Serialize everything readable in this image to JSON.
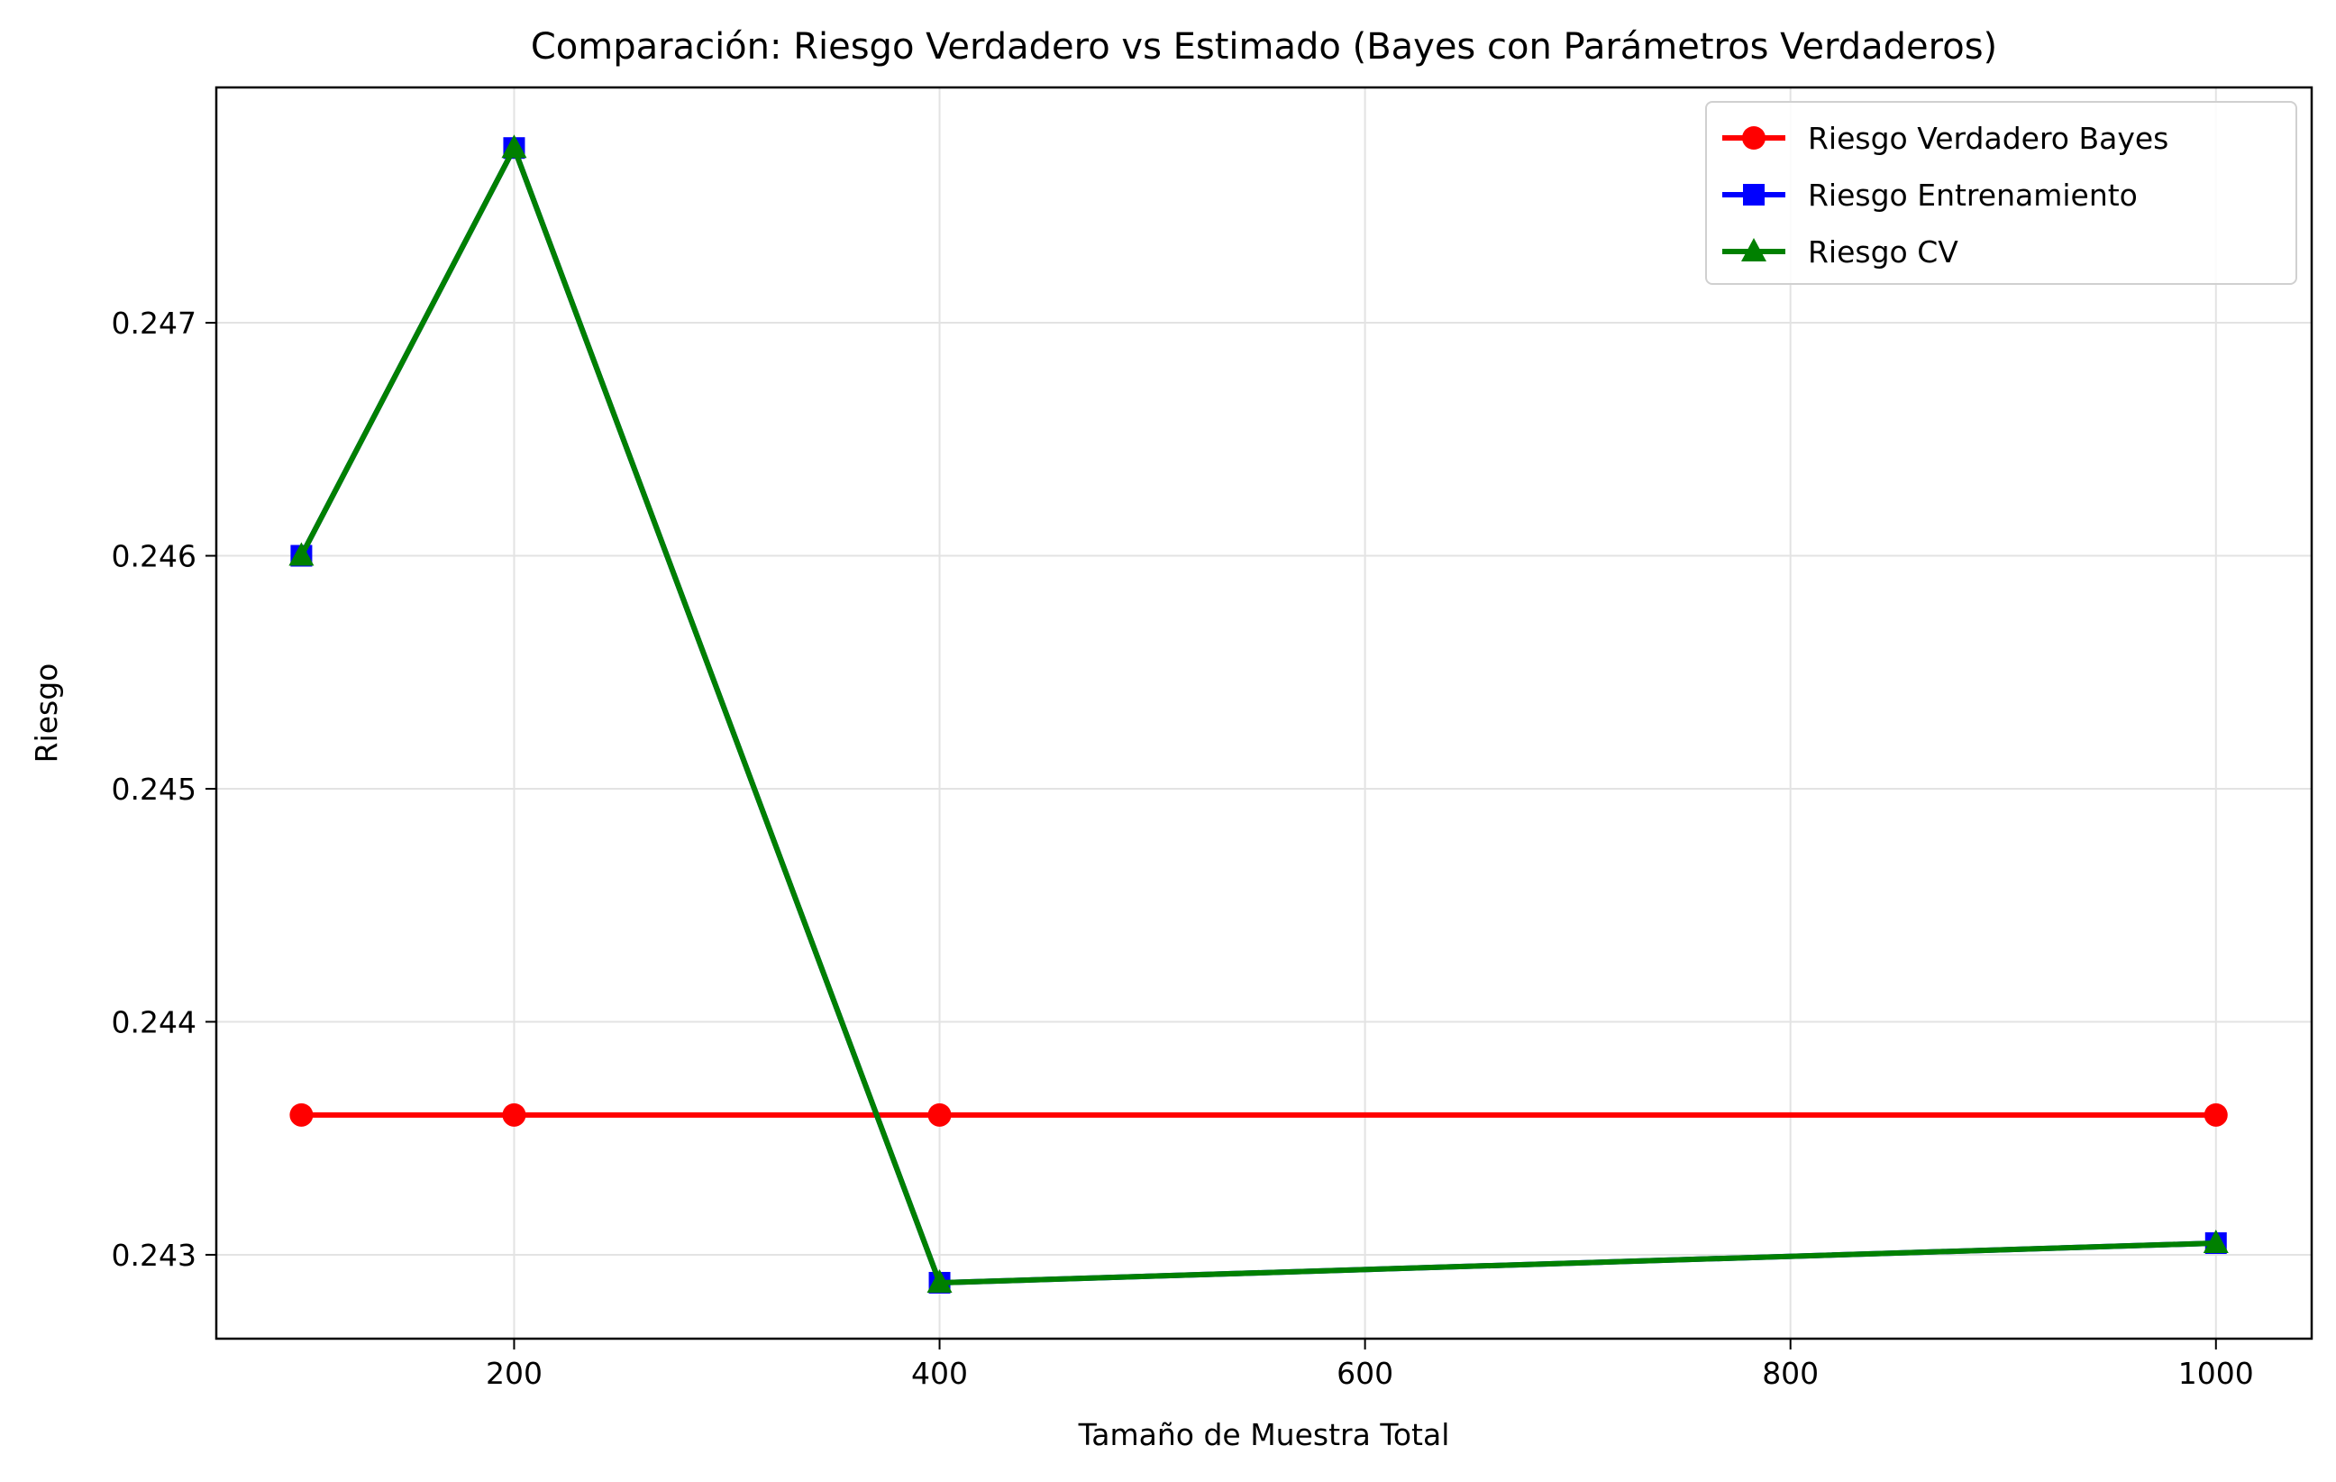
{
  "chart_data": {
    "type": "line",
    "title": "Comparación: Riesgo Verdadero vs Estimado (Bayes con Parámetros Verdaderos)",
    "xlabel": "Tamaño de Muestra Total",
    "ylabel": "Riesgo",
    "x": [
      100,
      200,
      400,
      1000
    ],
    "xlim": [
      60,
      1045
    ],
    "ylim": [
      0.24264,
      0.24801
    ],
    "xticks": [
      200,
      400,
      600,
      800,
      1000
    ],
    "xtick_labels": [
      "200",
      "400",
      "600",
      "800",
      "1000"
    ],
    "yticks": [
      0.243,
      0.244,
      0.245,
      0.246,
      0.247
    ],
    "ytick_labels": [
      "0.243",
      "0.244",
      "0.245",
      "0.246",
      "0.247"
    ],
    "grid": true,
    "legend_position": "top-right",
    "series": [
      {
        "name": "Riesgo Verdadero Bayes",
        "values": [
          0.2436,
          0.2436,
          0.2436,
          0.2436
        ],
        "color": "#ff0000",
        "marker": "circle"
      },
      {
        "name": "Riesgo Entrenamiento",
        "values": [
          0.246,
          0.24775,
          0.24288,
          0.24305
        ],
        "color": "#0000ff",
        "marker": "square"
      },
      {
        "name": "Riesgo CV",
        "values": [
          0.246,
          0.24775,
          0.24288,
          0.24305
        ],
        "color": "#008000",
        "marker": "triangle"
      }
    ]
  }
}
